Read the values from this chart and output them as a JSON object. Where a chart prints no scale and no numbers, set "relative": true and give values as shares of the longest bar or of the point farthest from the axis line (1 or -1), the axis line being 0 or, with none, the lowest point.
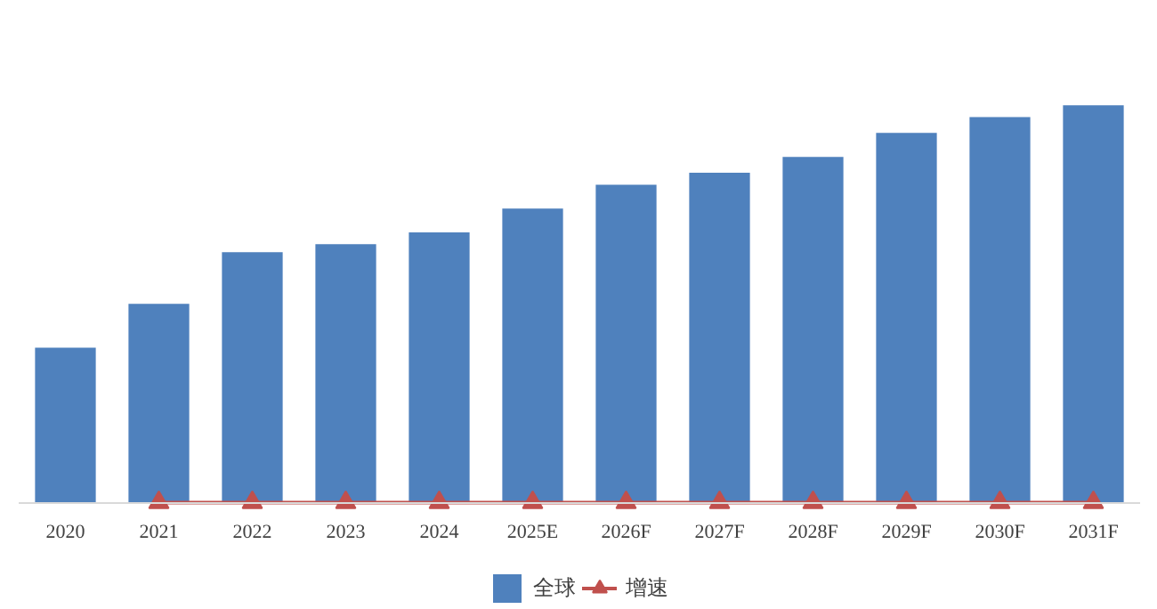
{
  "chart_data": {
    "type": "bar",
    "relative": true,
    "categories": [
      "2020",
      "2021",
      "2022",
      "2023",
      "2024",
      "2025E",
      "2026F",
      "2027F",
      "2028F",
      "2029F",
      "2030F",
      "2031F"
    ],
    "series": [
      {
        "name": "全球",
        "color": "#4f81bd",
        "values": [
          0.39,
          0.5,
          0.63,
          0.65,
          0.68,
          0.74,
          0.8,
          0.83,
          0.87,
          0.93,
          0.97,
          1.0
        ]
      },
      {
        "name": "增速",
        "type": "line",
        "color": "#c0504d",
        "marker": "triangle",
        "values": [
          null,
          0,
          0,
          0,
          0,
          0,
          0,
          0,
          0,
          0,
          0,
          0
        ]
      }
    ],
    "legend": "bottom",
    "grid": false
  }
}
